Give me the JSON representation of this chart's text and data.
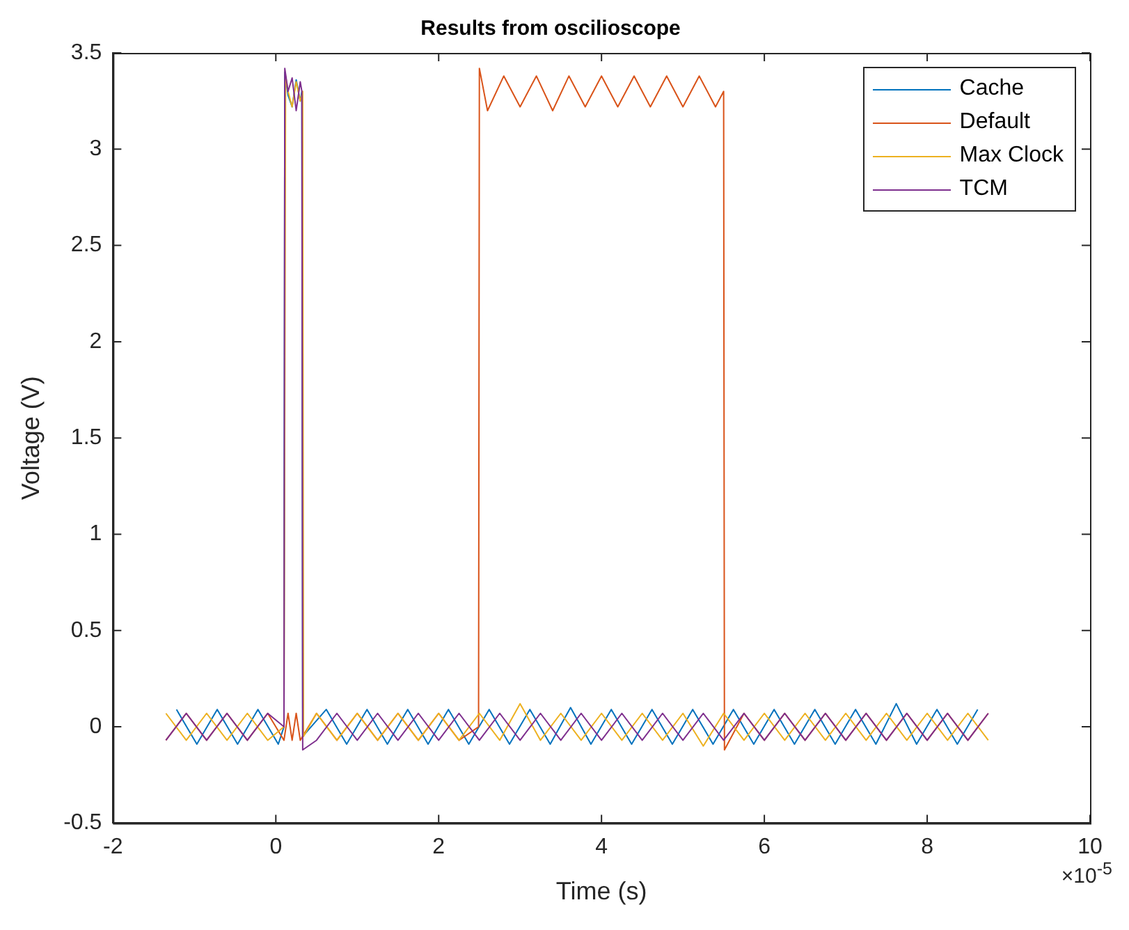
{
  "chart_data": {
    "type": "line",
    "title": "Results from oscilioscope",
    "xlabel": "Time (s)",
    "ylabel": "Voltage (V)",
    "annotations": [
      "×10$^{-5}$"
    ],
    "xlim": [
      -2,
      10
    ],
    "ylim": [
      -0.5,
      3.5
    ],
    "xticks": [
      -2,
      0,
      2,
      4,
      6,
      8,
      10
    ],
    "yticks": [
      -0.5,
      0,
      0.5,
      1,
      1.5,
      2,
      2.5,
      3,
      3.5
    ],
    "grid": false,
    "legend": "top right",
    "marker": "none",
    "line_style": "solid",
    "series": [
      {
        "name": "Cache",
        "color": "#0072bd",
        "x": [
          -1.22,
          -0.97,
          -0.72,
          -0.47,
          -0.22,
          0.03,
          0.1,
          0.11,
          0.15,
          0.2,
          0.25,
          0.3,
          0.32,
          0.33,
          0.62,
          0.87,
          1.12,
          1.37,
          1.62,
          1.87,
          2.12,
          2.37,
          2.62,
          2.87,
          3.12,
          3.37,
          3.62,
          3.87,
          4.12,
          4.37,
          4.62,
          4.87,
          5.12,
          5.37,
          5.62,
          5.87,
          6.12,
          6.37,
          6.62,
          6.87,
          7.12,
          7.37,
          7.62,
          7.87,
          8.12,
          8.37,
          8.62
        ],
        "values": [
          0.09,
          -0.09,
          0.09,
          -0.09,
          0.09,
          -0.09,
          0,
          3.4,
          3.28,
          3.22,
          3.36,
          3.25,
          3.3,
          -0.05,
          0.09,
          -0.09,
          0.09,
          -0.09,
          0.09,
          -0.09,
          0.09,
          -0.09,
          0.09,
          -0.09,
          0.09,
          -0.09,
          0.1,
          -0.09,
          0.09,
          -0.09,
          0.09,
          -0.09,
          0.09,
          -0.09,
          0.09,
          -0.09,
          0.09,
          -0.09,
          0.09,
          -0.09,
          0.09,
          -0.09,
          0.12,
          -0.09,
          0.09,
          -0.09,
          0.09
        ]
      },
      {
        "name": "Default",
        "color": "#d95319",
        "x": [
          -1.35,
          -1.1,
          -0.85,
          -0.6,
          -0.35,
          -0.1,
          0.1,
          0.15,
          0.2,
          0.25,
          0.3,
          0.5,
          0.75,
          1,
          1.25,
          1.5,
          1.75,
          2,
          2.25,
          2.49,
          2.5,
          2.6,
          2.8,
          3,
          3.2,
          3.4,
          3.6,
          3.8,
          4,
          4.2,
          4.4,
          4.6,
          4.8,
          5,
          5.2,
          5.4,
          5.5,
          5.51,
          5.75,
          6,
          6.25,
          6.5,
          6.75,
          7,
          7.25,
          7.5,
          7.75,
          8,
          8.25,
          8.5,
          8.75
        ],
        "values": [
          -0.07,
          0.07,
          -0.07,
          0.07,
          -0.07,
          0.07,
          -0.07,
          0.07,
          -0.07,
          0.07,
          -0.07,
          0.07,
          -0.07,
          0.07,
          -0.07,
          0.07,
          -0.07,
          0.07,
          -0.07,
          0,
          3.42,
          3.2,
          3.38,
          3.22,
          3.38,
          3.2,
          3.38,
          3.22,
          3.38,
          3.22,
          3.38,
          3.22,
          3.38,
          3.22,
          3.38,
          3.22,
          3.3,
          -0.12,
          0.07,
          -0.07,
          0.07,
          -0.07,
          0.07,
          -0.07,
          0.07,
          -0.07,
          0.07,
          -0.07,
          0.07,
          -0.07,
          0.07
        ]
      },
      {
        "name": "Max Clock",
        "color": "#edb120",
        "x": [
          -1.35,
          -1.1,
          -0.85,
          -0.6,
          -0.35,
          -0.1,
          0.1,
          0.12,
          0.15,
          0.2,
          0.25,
          0.3,
          0.33,
          0.34,
          0.5,
          0.75,
          1,
          1.25,
          1.5,
          1.75,
          2,
          2.25,
          2.5,
          2.75,
          3,
          3.25,
          3.5,
          3.75,
          4,
          4.25,
          4.5,
          4.75,
          5,
          5.25,
          5.5,
          5.75,
          6,
          6.25,
          6.5,
          6.75,
          7,
          7.25,
          7.5,
          7.75,
          8,
          8.25,
          8.5,
          8.75
        ],
        "values": [
          0.07,
          -0.07,
          0.07,
          -0.07,
          0.07,
          -0.07,
          0,
          3.38,
          3.3,
          3.22,
          3.35,
          3.25,
          3.3,
          -0.05,
          0.07,
          -0.07,
          0.07,
          -0.07,
          0.07,
          -0.07,
          0.07,
          -0.07,
          0.07,
          -0.07,
          0.12,
          -0.07,
          0.07,
          -0.07,
          0.07,
          -0.07,
          0.07,
          -0.07,
          0.07,
          -0.1,
          0.07,
          -0.07,
          0.07,
          -0.07,
          0.07,
          -0.07,
          0.07,
          -0.07,
          0.07,
          -0.07,
          0.07,
          -0.07,
          0.07,
          -0.07
        ]
      },
      {
        "name": "TCM",
        "color": "#7e2f8e",
        "x": [
          -1.35,
          -1.1,
          -0.85,
          -0.6,
          -0.35,
          -0.1,
          0.1,
          0.11,
          0.15,
          0.2,
          0.25,
          0.3,
          0.32,
          0.33,
          0.5,
          0.75,
          1,
          1.25,
          1.5,
          1.75,
          2,
          2.25,
          2.5,
          2.75,
          3,
          3.25,
          3.5,
          3.75,
          4,
          4.25,
          4.5,
          4.75,
          5,
          5.25,
          5.5,
          5.75,
          6,
          6.25,
          6.5,
          6.75,
          7,
          7.25,
          7.5,
          7.75,
          8,
          8.25,
          8.5,
          8.75
        ],
        "values": [
          -0.07,
          0.07,
          -0.07,
          0.07,
          -0.07,
          0.07,
          0,
          3.42,
          3.3,
          3.37,
          3.2,
          3.35,
          3.3,
          -0.12,
          -0.07,
          0.07,
          -0.07,
          0.07,
          -0.07,
          0.07,
          -0.07,
          0.07,
          -0.07,
          0.07,
          -0.07,
          0.07,
          -0.07,
          0.07,
          -0.07,
          0.07,
          -0.07,
          0.07,
          -0.07,
          0.07,
          -0.07,
          0.07,
          -0.07,
          0.07,
          -0.07,
          0.07,
          -0.07,
          0.07,
          -0.07,
          0.07,
          -0.07,
          0.07,
          -0.07,
          0.07
        ]
      }
    ]
  }
}
